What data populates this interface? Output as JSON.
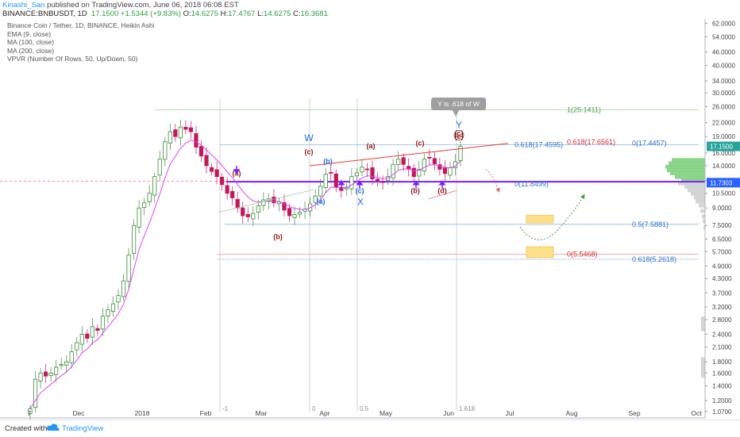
{
  "header": {
    "author": "Kinashi_San",
    "published": " published on TradingView.com, June 06, 2018 06:08 EST",
    "symbol": "BINANCE:BNBUSDT, 1D",
    "price": "17.1500",
    "change": "+1.5344 (+9.83%)",
    "o_label": "O:",
    "o": "14.6275",
    "h_label": "H:",
    "h": "17.4767",
    "l_label": "L:",
    "l": "14.6275",
    "c_label": "C:",
    "c": "16.3681"
  },
  "legend": [
    "Binance Coin / Tether, 1D, BINANCE, Heikin Ashi",
    "EMA (9, close)",
    "MA (100, close)",
    "MA (200, close)",
    "VPVR (Number Of Rows, 50, Up/Down, 50)"
  ],
  "footer": {
    "created": "Created with",
    "brand": "TradingView"
  },
  "colors": {
    "up": "#26a69a",
    "down": "#ef5350",
    "up_bar": "#3a8a3a",
    "down_bar": "#c2185b",
    "ema": "#e040fb",
    "purple_line": "#7b1fff",
    "blue": "#1e6fd9",
    "red": "#d32f2f"
  },
  "chart_data": {
    "type": "candlestick",
    "scale": "log",
    "x_ticks": [
      "7",
      "Dec",
      "2018",
      "Feb",
      "Mar",
      "Apr",
      "May",
      "Jun",
      "Jul",
      "Aug",
      "Sep",
      "Oct"
    ],
    "y_ticks": [
      "62.0000",
      "54.0000",
      "46.0000",
      "40.0000",
      "34.0000",
      "30.0000",
      "26.0000",
      "22.0000",
      "19.0000",
      "16.0000",
      "14.0000",
      "12.0000",
      "10.5000",
      "9.0000",
      "7.5000",
      "6.5000",
      "5.7000",
      "4.9000",
      "4.3000",
      "3.7000",
      "3.2000",
      "2.8000",
      "2.4000",
      "2.1000",
      "1.8000",
      "1.6000",
      "1.4000",
      "1.2000",
      "1.0700"
    ],
    "ylim": [
      1.0,
      65.0
    ],
    "last_price": "17.1500",
    "marker_price": "11.7303",
    "fib_levels": [
      {
        "label": "1(25.1411)",
        "value": 25.1411
      },
      {
        "label": "0.618(17.4595)",
        "value": 17.4595
      },
      {
        "label": "0.618(17.6561)",
        "value": 17.6561
      },
      {
        "label": "0(17.4457)",
        "value": 17.4457
      },
      {
        "label": "0(11.8499)",
        "value": 11.8499
      },
      {
        "label": "0.5(7.5881)",
        "value": 7.5881
      },
      {
        "label": "0(5.5468)",
        "value": 5.5468
      },
      {
        "label": "0.618(5.2618)",
        "value": 5.2618
      }
    ],
    "time_fib_labels": [
      "-1",
      "0",
      "0.5",
      "1.618"
    ],
    "wave_labels": [
      "(a)",
      "(b)",
      "(c)",
      "W",
      "(b)",
      "(a)",
      "(c)",
      "(a)",
      "(c)",
      "X",
      "(b)",
      "(d)",
      "(c)",
      "(e)",
      "Y"
    ],
    "callout": "Y is .618 of W",
    "prices": [
      1.1,
      1.5,
      1.6,
      1.55,
      1.6,
      1.7,
      1.75,
      1.8,
      2.0,
      2.2,
      2.4,
      2.3,
      2.6,
      2.5,
      2.9,
      3.1,
      3.3,
      3.6,
      4.2,
      5.5,
      7.5,
      9.0,
      9.5,
      10.5,
      12.5,
      15.0,
      18.0,
      20.0,
      19.0,
      21.0,
      20.5,
      20.0,
      17.0,
      15.5,
      14.0,
      13.2,
      12.5,
      11.5,
      10.5,
      10.0,
      9.0,
      8.3,
      8.2,
      8.5,
      9.2,
      9.8,
      9.9,
      9.5,
      9.6,
      8.8,
      8.3,
      8.4,
      8.6,
      8.9,
      9.4,
      10.2,
      11.3,
      12.8,
      13.0,
      11.2,
      10.8,
      11.2,
      12.5,
      13.0,
      13.8,
      13.5,
      12.2,
      12.0,
      11.8,
      12.5,
      14.2,
      15.0,
      14.2,
      13.5,
      12.5,
      13.5,
      15.0,
      15.2,
      14.3,
      13.5,
      12.9,
      13.7,
      14.6,
      17.15
    ]
  }
}
